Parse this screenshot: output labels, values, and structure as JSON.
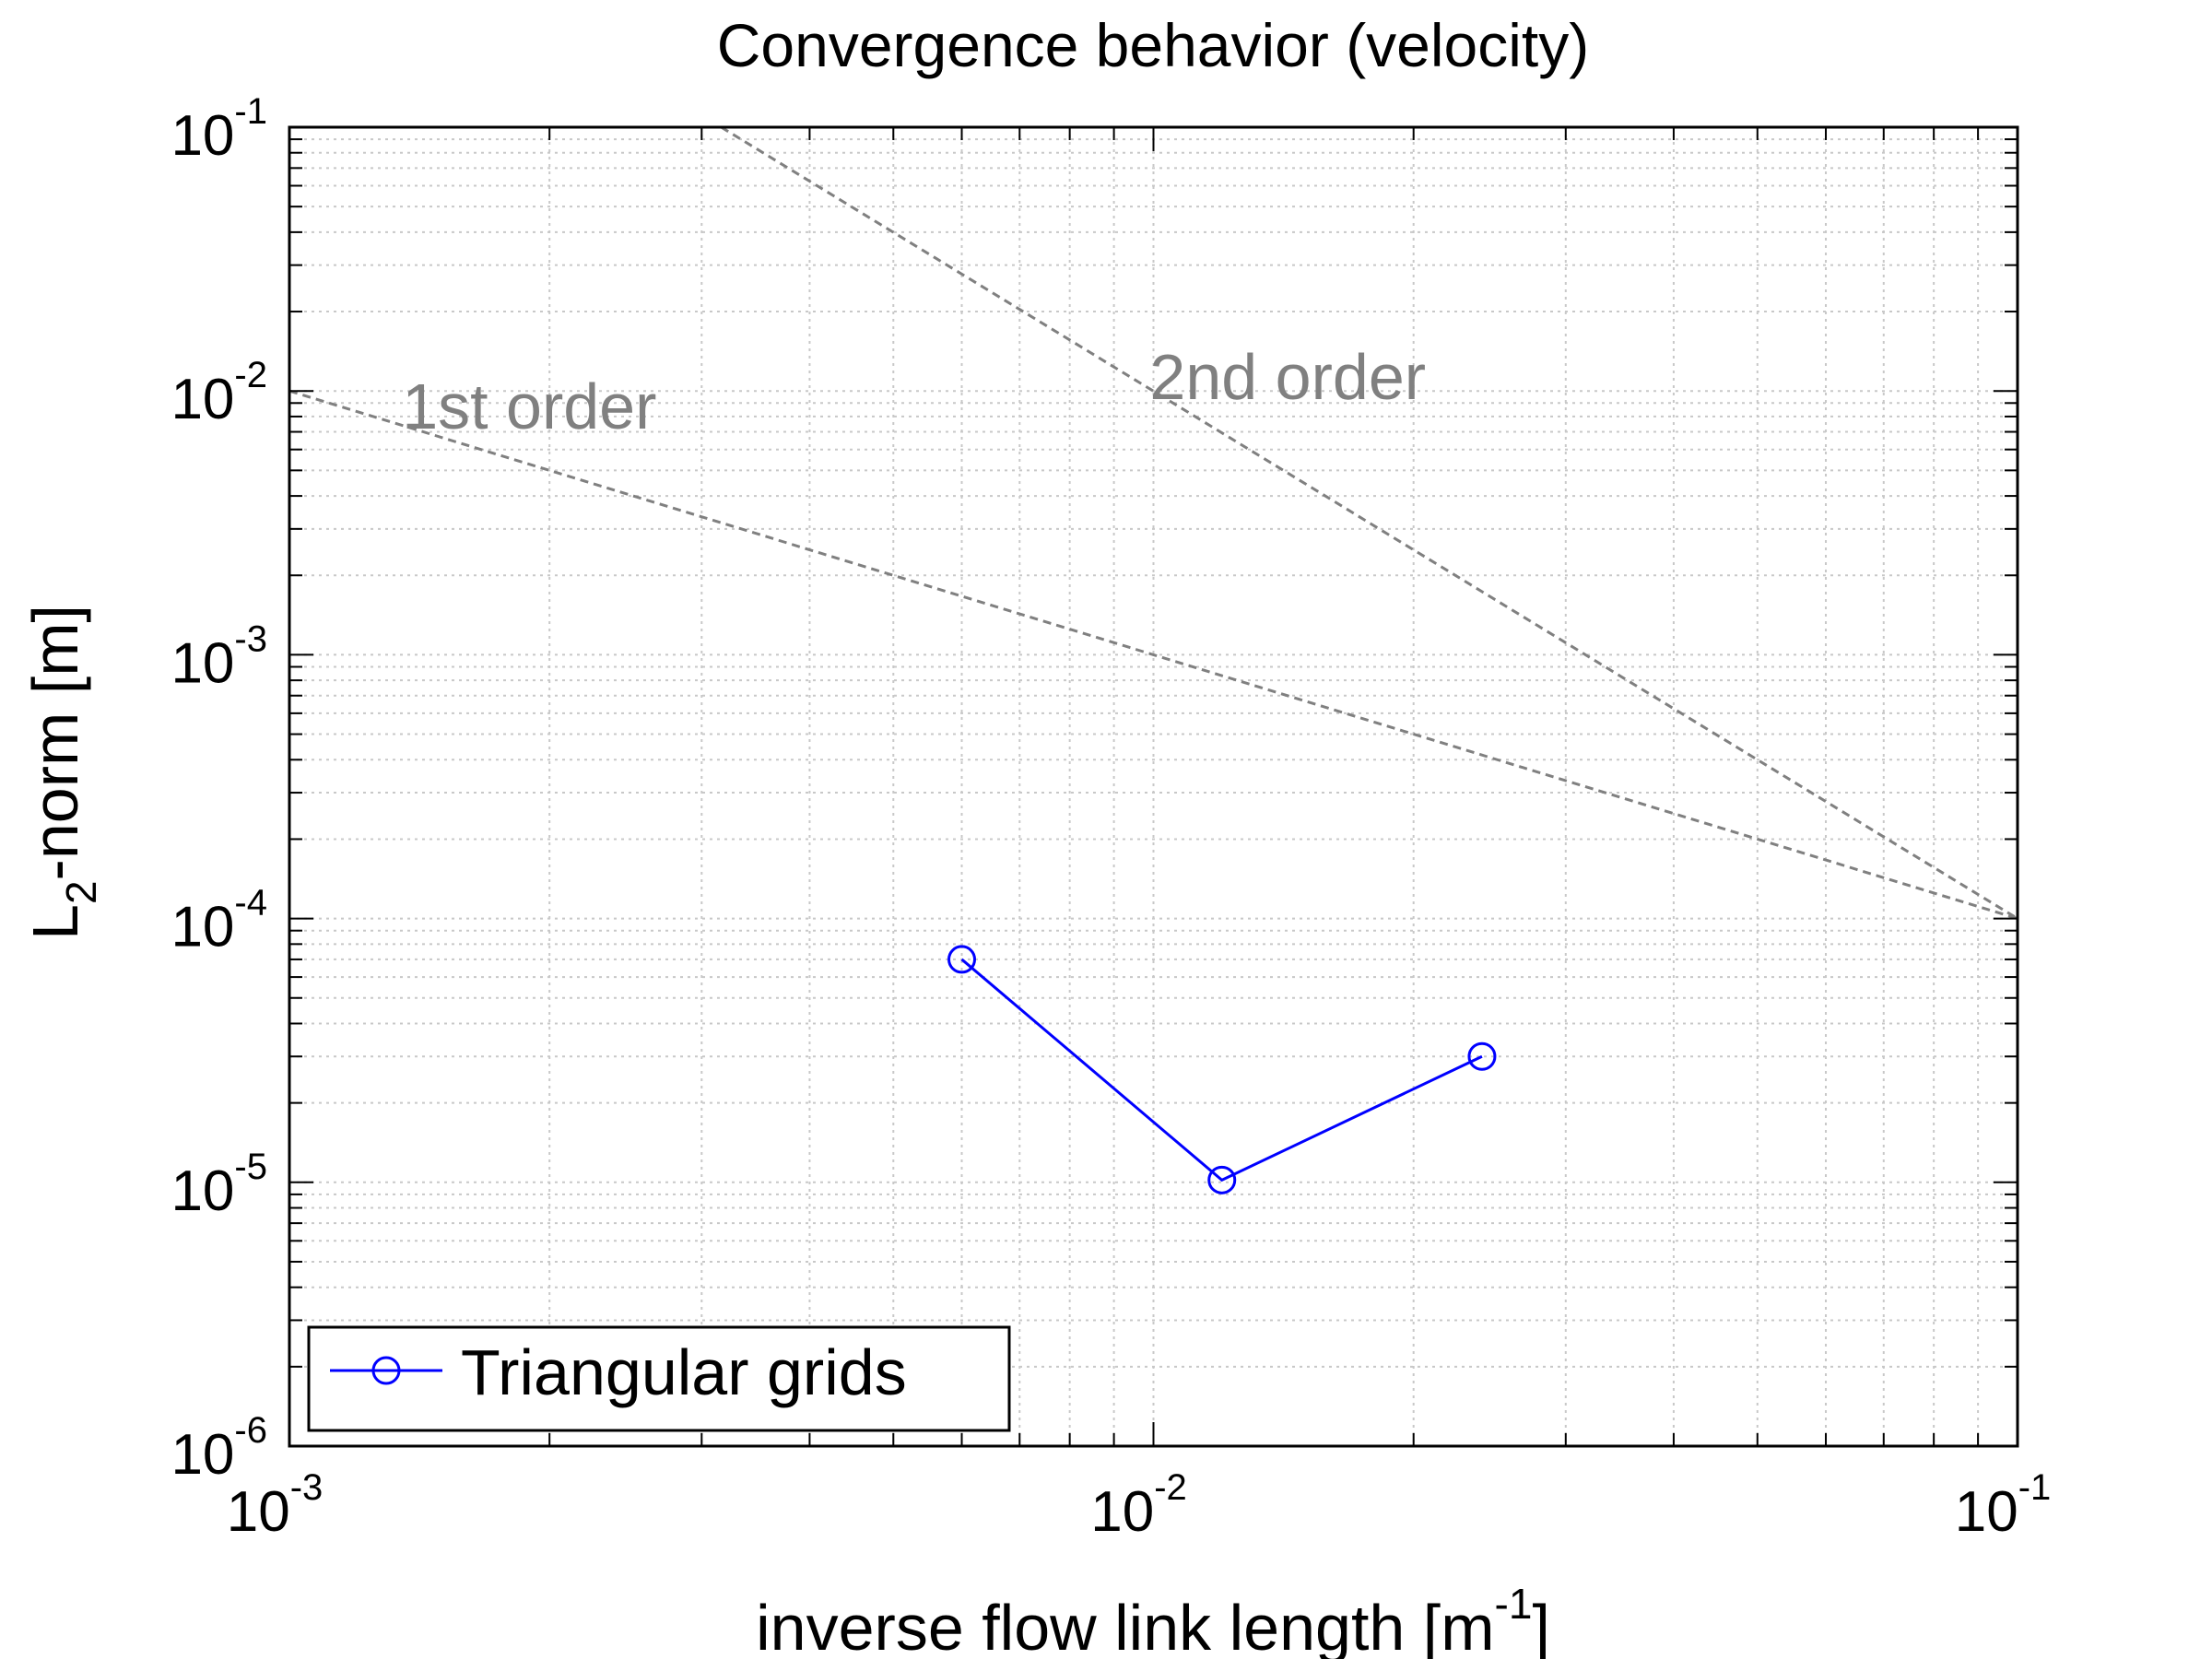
{
  "chart_data": {
    "type": "line",
    "title": "Convergence behavior (velocity)",
    "xlabel": {
      "pre": "inverse flow link length [m",
      "sup": "-1",
      "post": "]"
    },
    "ylabel": {
      "pre": "L",
      "sub": "2",
      "post": "-norm [m]"
    },
    "xscale": "log",
    "yscale": "log",
    "xlim": [
      0.001,
      0.1
    ],
    "ylim": [
      1e-06,
      0.1
    ],
    "grid": true,
    "xticks": [
      {
        "value": 0.001,
        "base": "10",
        "exp": "-3"
      },
      {
        "value": 0.01,
        "base": "10",
        "exp": "-2"
      },
      {
        "value": 0.1,
        "base": "10",
        "exp": "-1"
      }
    ],
    "yticks": [
      {
        "value": 1e-06,
        "base": "10",
        "exp": "-6"
      },
      {
        "value": 1e-05,
        "base": "10",
        "exp": "-5"
      },
      {
        "value": 0.0001,
        "base": "10",
        "exp": "-4"
      },
      {
        "value": 0.001,
        "base": "10",
        "exp": "-3"
      },
      {
        "value": 0.01,
        "base": "10",
        "exp": "-2"
      },
      {
        "value": 0.1,
        "base": "10",
        "exp": "-1"
      }
    ],
    "series": [
      {
        "name": "Triangular grids",
        "color": "#0000ff",
        "marker": "circle",
        "x": [
          0.006,
          0.012,
          0.024
        ],
        "y": [
          7e-05,
          1.02e-05,
          3e-05
        ]
      }
    ],
    "reference_lines": [
      {
        "label": "1st order",
        "color": "#808080",
        "style": "dashed",
        "x": [
          0.001,
          0.1
        ],
        "y": [
          0.01,
          0.0001
        ]
      },
      {
        "label": "2nd order",
        "color": "#808080",
        "style": "dashed",
        "x": [
          0.00316,
          0.1
        ],
        "y": [
          0.1,
          0.0001
        ]
      }
    ],
    "annotations": [
      {
        "text": "1st order",
        "x": 0.00135,
        "y": 0.0072,
        "color": "#808080"
      },
      {
        "text": "2nd order",
        "x": 0.0099,
        "y": 0.0093,
        "color": "#808080"
      }
    ],
    "legend": {
      "position": "bottom-left",
      "entries": [
        "Triangular grids"
      ]
    }
  }
}
